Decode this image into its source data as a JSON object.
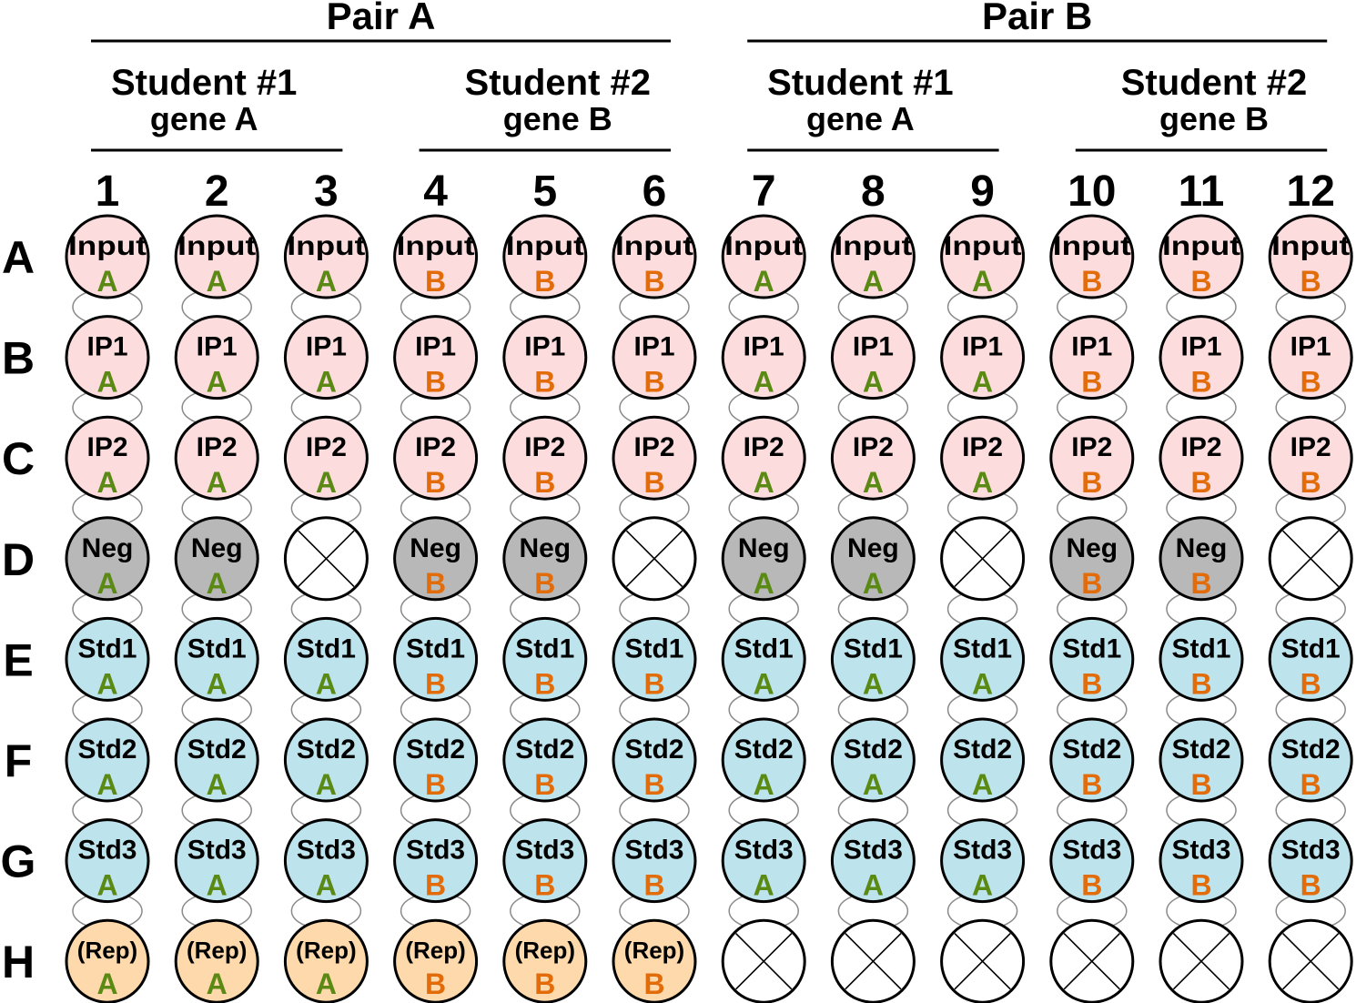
{
  "pairs": [
    {
      "label": "Pair A",
      "students": [
        {
          "name": "Student #1",
          "gene": "gene A",
          "columns": [
            1,
            2,
            3
          ]
        },
        {
          "name": "Student #2",
          "gene": "gene B",
          "columns": [
            4,
            5,
            6
          ]
        }
      ]
    },
    {
      "label": "Pair B",
      "students": [
        {
          "name": "Student #1",
          "gene": "gene A",
          "columns": [
            7,
            8,
            9
          ]
        },
        {
          "name": "Student #2",
          "gene": "gene B",
          "columns": [
            10,
            11,
            12
          ]
        }
      ]
    }
  ],
  "column_labels": [
    "1",
    "2",
    "3",
    "4",
    "5",
    "6",
    "7",
    "8",
    "9",
    "10",
    "11",
    "12"
  ],
  "row_labels": [
    "A",
    "B",
    "C",
    "D",
    "E",
    "F",
    "G",
    "H"
  ],
  "column_genes": [
    "A",
    "A",
    "A",
    "B",
    "B",
    "B",
    "A",
    "A",
    "A",
    "B",
    "B",
    "B"
  ],
  "rows": [
    {
      "label": "Input",
      "type": "input",
      "empty_columns": []
    },
    {
      "label": "IP1",
      "type": "ip",
      "empty_columns": []
    },
    {
      "label": "IP2",
      "type": "ip",
      "empty_columns": []
    },
    {
      "label": "Neg",
      "type": "neg",
      "empty_columns": [
        3,
        6,
        9,
        12
      ]
    },
    {
      "label": "Std1",
      "type": "std",
      "empty_columns": []
    },
    {
      "label": "Std2",
      "type": "std",
      "empty_columns": []
    },
    {
      "label": "Std3",
      "type": "std",
      "empty_columns": []
    },
    {
      "label": "(Rep)",
      "type": "rep",
      "empty_columns": [
        7,
        8,
        9,
        10,
        11,
        12
      ]
    }
  ],
  "colors": {
    "input": "#fcdcdc",
    "ip": "#fcdcdc",
    "neg": "#b8b8b8",
    "std": "#bde3ec",
    "rep": "#fdd9ac",
    "empty": "#ffffff",
    "gene_A": "#5a8a13",
    "gene_B": "#e36c0a",
    "outline": "#000000",
    "link": "#8a8a8a"
  }
}
